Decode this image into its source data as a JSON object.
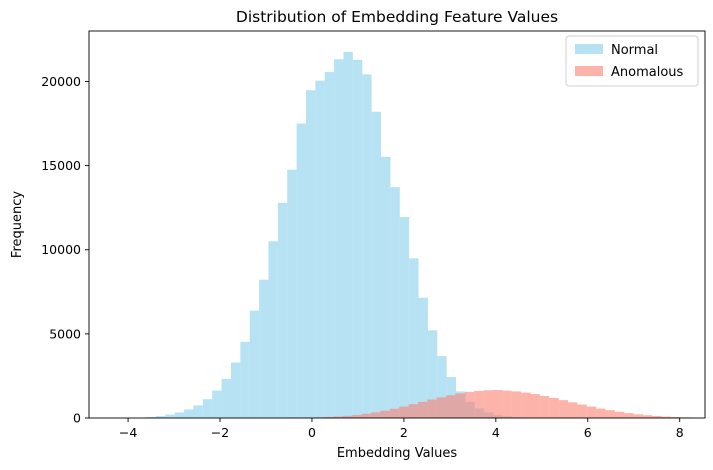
{
  "chart_data": {
    "type": "bar",
    "title": "Distribution of Embedding Feature Values",
    "xlabel": "Embedding Values",
    "ylabel": "Frequency",
    "xlim": [
      -4.85,
      8.55
    ],
    "ylim": [
      0,
      23000
    ],
    "xticks": [
      -4,
      -2,
      0,
      2,
      4,
      6,
      8
    ],
    "yticks": [
      0,
      5000,
      10000,
      15000,
      20000
    ],
    "grid": false,
    "legend_position": "top-right",
    "series": [
      {
        "name": "Normal",
        "color": "#87ceeb",
        "opacity": 0.6,
        "bin_width": 0.204,
        "bin_start": -4.21,
        "counts": [
          8,
          15,
          30,
          60,
          115,
          210,
          330,
          510,
          750,
          1120,
          1630,
          2330,
          3300,
          4530,
          6380,
          8220,
          10500,
          12790,
          14760,
          17500,
          19480,
          20050,
          20560,
          21320,
          21760,
          21290,
          20420,
          18200,
          15520,
          13720,
          11950,
          9490,
          7150,
          5210,
          3680,
          2430,
          1580,
          960,
          570,
          320,
          170,
          90,
          45,
          20,
          8
        ]
      },
      {
        "name": "Anomalous",
        "color": "#fa8072",
        "opacity": 0.6,
        "bin_width": 0.204,
        "bin_start": -0.55,
        "counts": [
          10,
          15,
          25,
          40,
          60,
          90,
          130,
          180,
          250,
          330,
          430,
          550,
          680,
          820,
          960,
          1100,
          1230,
          1350,
          1460,
          1550,
          1610,
          1650,
          1660,
          1630,
          1580,
          1510,
          1420,
          1310,
          1190,
          1060,
          930,
          800,
          680,
          560,
          460,
          370,
          290,
          220,
          165,
          120,
          85,
          60,
          40,
          25,
          15
        ]
      }
    ]
  }
}
